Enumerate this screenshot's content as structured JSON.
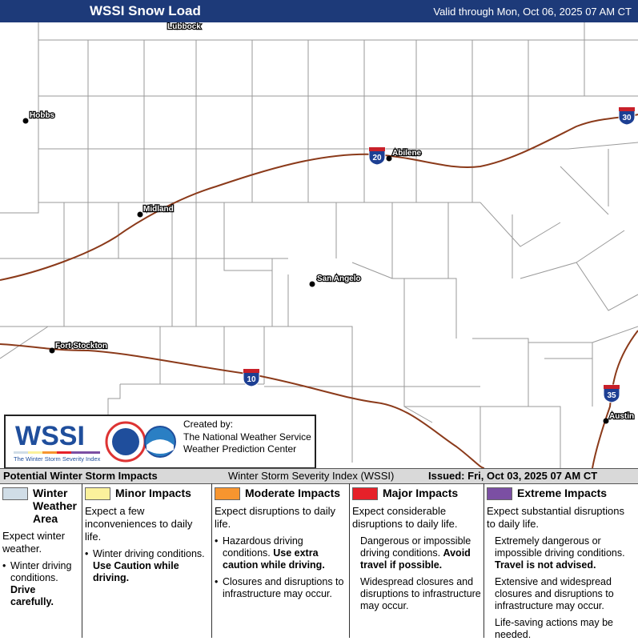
{
  "header": {
    "title": "WSSI Snow Load",
    "valid": "Valid through Mon, Oct 06, 2025 07 AM CT"
  },
  "map": {
    "cities": [
      "Lubbock",
      "Hobbs",
      "Midland",
      "Abilene",
      "San Angelo",
      "Fort Stockton",
      "Austin"
    ],
    "interstates": [
      "30",
      "20",
      "10",
      "35"
    ]
  },
  "logo": {
    "name": "WSSI",
    "subtitle": "The Winter Storm Severity Index",
    "created_by": "Created by:",
    "org1": "The National Weather Service",
    "org2": "Weather Prediction Center"
  },
  "legend": {
    "title": "Potential Winter Storm Impacts",
    "index": "Winter Storm Severity Index (WSSI)",
    "issued": "Issued: Fri, Oct 03, 2025 07 AM CT",
    "columns": [
      {
        "name": "Winter Weather Area",
        "color": "#d0dde7",
        "summary": "Expect winter weather.",
        "bulleted": true,
        "items": [
          {
            "text": "Winter driving conditions.",
            "strong": "Drive carefully."
          }
        ]
      },
      {
        "name": "Minor Impacts",
        "color": "#fbf19c",
        "summary": "Expect a few inconveniences to daily life.",
        "bulleted": true,
        "items": [
          {
            "text": "Winter driving conditions.",
            "strong": "Use Caution while driving."
          }
        ]
      },
      {
        "name": "Moderate Impacts",
        "color": "#f7952f",
        "summary": "Expect disruptions to daily life.",
        "bulleted": true,
        "items": [
          {
            "text": "Hazardous driving conditions.",
            "strong": "Use extra caution while driving."
          },
          {
            "text": "Closures and disruptions to infrastructure may occur."
          }
        ]
      },
      {
        "name": "Major Impacts",
        "color": "#e62129",
        "summary": "Expect considerable disruptions to daily life.",
        "bulleted": false,
        "items": [
          {
            "text": "Dangerous or impossible driving conditions.",
            "strong": "Avoid travel if possible."
          },
          {
            "text": "Widespread closures and disruptions to infrastructure may occur."
          }
        ]
      },
      {
        "name": "Extreme Impacts",
        "color": "#7b4fa3",
        "summary": "Expect substantial disruptions to daily life.",
        "bulleted": false,
        "items": [
          {
            "text": "Extremely dangerous or impossible driving conditions.",
            "strong": "Travel is not advised."
          },
          {
            "text": "Extensive and widespread closures and disruptions to infrastructure may occur."
          },
          {
            "text": "Life-saving actions may be needed."
          }
        ]
      }
    ]
  }
}
